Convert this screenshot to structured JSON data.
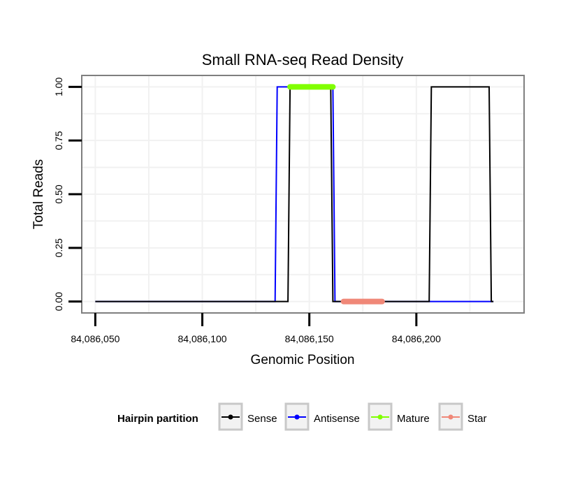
{
  "chart_data": {
    "type": "line",
    "title": "Small RNA-seq Read Density",
    "xlabel": "Genomic Position",
    "ylabel": "Total Reads",
    "xlim": [
      84086044,
      84086250
    ],
    "ylim": [
      -0.05,
      1.05
    ],
    "x_ticks": [
      84086050,
      84086100,
      84086150,
      84086200
    ],
    "x_tick_labels": [
      "84,086,050",
      "84,086,100",
      "84,086,150",
      "84,086,200"
    ],
    "y_ticks": [
      0,
      0.25,
      0.5,
      0.75,
      1.0
    ],
    "y_tick_labels": [
      "0.00",
      "0.25",
      "0.50",
      "0.75",
      "1.00"
    ],
    "grid": true,
    "series": [
      {
        "name": "Antisense",
        "color": "#0000ff",
        "points": [
          [
            84086050,
            0
          ],
          [
            84086134,
            0
          ],
          [
            84086135,
            1
          ],
          [
            84086161,
            1
          ],
          [
            84086162,
            0
          ],
          [
            84086236,
            0
          ]
        ]
      },
      {
        "name": "Sense",
        "color": "#000000",
        "points": [
          [
            84086050,
            0
          ],
          [
            84086140,
            0
          ],
          [
            84086141,
            1
          ],
          [
            84086160,
            1
          ],
          [
            84086161,
            0
          ],
          [
            84086206,
            0
          ],
          [
            84086207,
            1
          ],
          [
            84086234,
            1
          ],
          [
            84086235,
            0
          ],
          [
            84086236,
            0
          ]
        ]
      }
    ],
    "segments": [
      {
        "name": "Mature",
        "color": "#80ff00",
        "x": [
          84086141,
          84086161
        ],
        "y": 1.0
      },
      {
        "name": "Star",
        "color": "#f08878",
        "x": [
          84086166,
          84086184
        ],
        "y": 0.0
      }
    ],
    "legend": {
      "title": "Hairpin partition",
      "position": "bottom",
      "entries": [
        {
          "label": "Sense",
          "color": "#000000"
        },
        {
          "label": "Antisense",
          "color": "#0000ff"
        },
        {
          "label": "Mature",
          "color": "#80ff00"
        },
        {
          "label": "Star",
          "color": "#f08878"
        }
      ]
    }
  }
}
